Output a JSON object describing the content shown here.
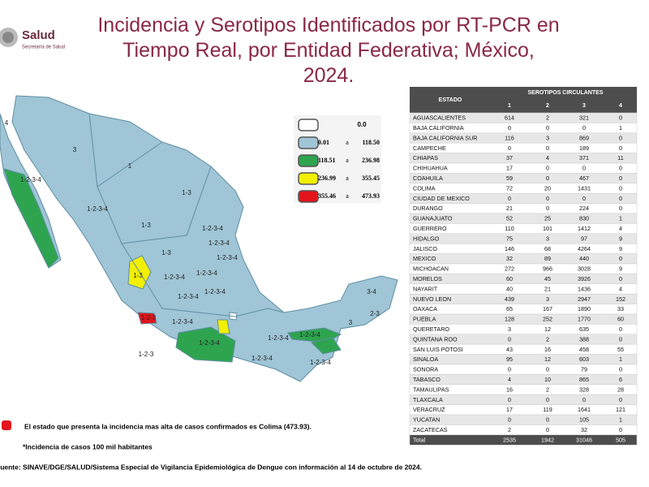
{
  "header": {
    "logo": "Salud",
    "logo_sub": "Secretaría de Salud",
    "title": "Incidencia y Serotipos Identificados por RT-PCR en Tiempo Real, por Entidad Federativa; México, 2024."
  },
  "legend": {
    "separator": "a",
    "items": [
      {
        "label": "0.0",
        "color": "#ffffff"
      },
      {
        "from": "0.01",
        "to": "118.50",
        "color": "#9fc5d6"
      },
      {
        "from": "118.51",
        "to": "236.98",
        "color": "#2ea44f"
      },
      {
        "from": "236.99",
        "to": "355.45",
        "color": "#f2f000"
      },
      {
        "from": "355.46",
        "to": "473.93",
        "color": "#e3141c"
      }
    ]
  },
  "map_labels": [
    "4",
    "3",
    "1",
    "1-2-3-4",
    "1-3",
    "1-2-3-4",
    "1-3",
    "1-2-3-4",
    "1-2-3-4",
    "1-3",
    "1-2-3-4",
    "1-2-3-4",
    "1-2-3-4",
    "1-3",
    "1-2-3-4",
    "1-2-3-4",
    "1-2-3-4",
    "1-2-3",
    "1-2-3",
    "1-2-3-4",
    "1-2-3-4",
    "1-2-3-4",
    "1-2-3-4",
    "1-2-3-4",
    "3-4",
    "2-3",
    "3"
  ],
  "table": {
    "header": {
      "state": "ESTADO",
      "group": "SEROTIPOS CIRCULANTES",
      "serotypes": [
        "1",
        "2",
        "3",
        "4"
      ]
    },
    "rows": [
      [
        "AGUASCALIENTES",
        614,
        2,
        321,
        0
      ],
      [
        "BAJA CALIFORNIA",
        0,
        0,
        0,
        1
      ],
      [
        "BAJA CALIFORNIA SUR",
        116,
        3,
        869,
        0
      ],
      [
        "CAMPECHE",
        0,
        0,
        189,
        0
      ],
      [
        "CHIAPAS",
        37,
        4,
        371,
        11
      ],
      [
        "CHIHUAHUA",
        17,
        0,
        0,
        0
      ],
      [
        "COAHUILA",
        59,
        0,
        467,
        0
      ],
      [
        "COLIMA",
        72,
        20,
        1431,
        0
      ],
      [
        "CIUDAD DE MEXICO",
        0,
        0,
        0,
        0
      ],
      [
        "DURANGO",
        21,
        0,
        224,
        0
      ],
      [
        "GUANAJUATO",
        52,
        25,
        830,
        1
      ],
      [
        "GUERRERO",
        110,
        101,
        1412,
        4
      ],
      [
        "HIDALGO",
        75,
        3,
        97,
        9
      ],
      [
        "JALISCO",
        146,
        68,
        4264,
        9
      ],
      [
        "MEXICO",
        32,
        89,
        440,
        0
      ],
      [
        "MICHOACAN",
        272,
        966,
        3028,
        9
      ],
      [
        "MORELOS",
        60,
        45,
        3926,
        0
      ],
      [
        "NAYARIT",
        40,
        21,
        1436,
        4
      ],
      [
        "NUEVO LEON",
        439,
        3,
        2947,
        152
      ],
      [
        "OAXACA",
        65,
        167,
        1890,
        33
      ],
      [
        "PUEBLA",
        128,
        252,
        1770,
        60
      ],
      [
        "QUERETARO",
        3,
        12,
        635,
        0
      ],
      [
        "QUINTANA ROO",
        0,
        2,
        388,
        0
      ],
      [
        "SAN LUIS POTOSI",
        43,
        16,
        458,
        55
      ],
      [
        "SINALOA",
        95,
        12,
        603,
        1
      ],
      [
        "SONORA",
        0,
        0,
        79,
        0
      ],
      [
        "TABASCO",
        4,
        10,
        865,
        6
      ],
      [
        "TAMAULIPAS",
        16,
        2,
        328,
        28
      ],
      [
        "TLAXCALA",
        0,
        0,
        0,
        0
      ],
      [
        "VERACRUZ",
        17,
        119,
        1641,
        121
      ],
      [
        "YUCATAN",
        0,
        0,
        105,
        1
      ],
      [
        "ZACATECAS",
        2,
        0,
        32,
        0
      ]
    ],
    "total": [
      "Total",
      2535,
      1942,
      31046,
      505
    ]
  },
  "notes": {
    "highlight": "El estado que presenta la incidencia mas alta de casos confirmados es Colima (473.93).",
    "footnote": "*Incidencia de casos 100 mil habitantes",
    "source": "Fuente: SINAVE/DGE/SALUD/Sistema Especial de Vigilancia Epidemiológica de Dengue con información al 14 de octubre de 2024."
  }
}
